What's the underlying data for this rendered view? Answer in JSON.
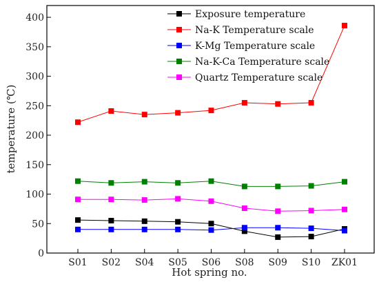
{
  "chart_data": {
    "type": "line",
    "title": "",
    "xlabel": "Hot spring no.",
    "ylabel": "temperature (℃)",
    "ylim": [
      0,
      420
    ],
    "yticks": [
      0,
      50,
      100,
      150,
      200,
      250,
      300,
      350,
      400
    ],
    "grid": false,
    "legend_position": "top-right",
    "categories": [
      "S01",
      "S02",
      "S04",
      "S05",
      "S06",
      "S08",
      "S09",
      "S10",
      "ZK01"
    ],
    "series": [
      {
        "name": "Exposure temperature",
        "color": "#000000",
        "values": [
          56,
          55,
          54,
          53,
          50,
          37,
          27,
          28,
          41
        ]
      },
      {
        "name": "Na-K Temperature scale",
        "color": "#ff0000",
        "values": [
          222,
          241,
          235,
          238,
          242,
          255,
          253,
          255,
          386
        ]
      },
      {
        "name": "K-Mg Temperature scale",
        "color": "#0000ff",
        "values": [
          40,
          40,
          40,
          40,
          39,
          43,
          43,
          42,
          38
        ]
      },
      {
        "name": "Na-K-Ca Temperature scale",
        "color": "#008000",
        "values": [
          122,
          119,
          121,
          119,
          122,
          113,
          113,
          114,
          121
        ]
      },
      {
        "name": "Quartz Temperature scale",
        "color": "#ff00ff",
        "values": [
          91,
          91,
          90,
          92,
          88,
          76,
          71,
          72,
          74
        ]
      }
    ]
  }
}
